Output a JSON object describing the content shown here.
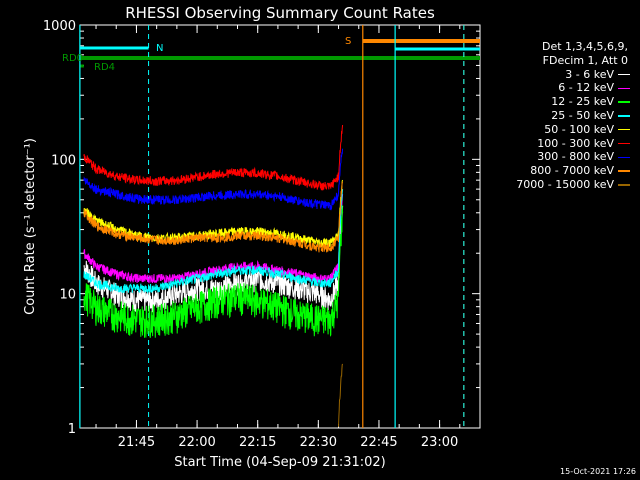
{
  "chart_data": {
    "type": "line",
    "title": "RHESSI Observing Summary Count Rates",
    "xlabel": "Start Time (04-Sep-09 21:31:02)",
    "ylabel": "Count Rate (s⁻¹ detector⁻¹)",
    "y_scale": "log",
    "ylim": [
      1,
      1000
    ],
    "xlim": [
      "21:31:02",
      "23:10:00"
    ],
    "x_ticks": [
      "21:45",
      "22:00",
      "22:15",
      "22:30",
      "22:45",
      "23:00"
    ],
    "y_ticks": [
      "1",
      "10",
      "100",
      "1000"
    ],
    "legend_header": [
      "Det 1,3,4,5,6,9,",
      "FDecim 1, Att 0"
    ],
    "legend_position": "right",
    "series": [
      {
        "name": "3 - 6 keV",
        "color": "#ffffff",
        "x": [
          "21:32",
          "21:35",
          "21:40",
          "21:45",
          "21:50",
          "21:55",
          "22:00",
          "22:05",
          "22:10",
          "22:15",
          "22:20",
          "22:25",
          "22:30",
          "22:33",
          "22:35",
          "22:36"
        ],
        "values": [
          16,
          12,
          10,
          9,
          9,
          10,
          11,
          11,
          12,
          13,
          12,
          11,
          10,
          9,
          12,
          45
        ]
      },
      {
        "name": "6 - 12 keV",
        "color": "#ff00ff",
        "x": [
          "21:32",
          "21:35",
          "21:40",
          "21:45",
          "21:50",
          "21:55",
          "22:00",
          "22:05",
          "22:10",
          "22:15",
          "22:20",
          "22:25",
          "22:30",
          "22:33",
          "22:35",
          "22:36"
        ],
        "values": [
          20,
          16,
          14,
          13,
          13,
          13,
          14,
          15,
          16,
          16,
          15,
          14,
          13,
          13,
          16,
          55
        ]
      },
      {
        "name": "12 - 25 keV",
        "color": "#00ff00",
        "x": [
          "21:32",
          "21:35",
          "21:40",
          "21:45",
          "21:50",
          "21:55",
          "22:00",
          "22:05",
          "22:10",
          "22:15",
          "22:20",
          "22:25",
          "22:30",
          "22:33",
          "22:35",
          "22:36"
        ],
        "values": [
          10,
          8,
          7,
          6.5,
          6.5,
          7,
          8,
          9,
          9.5,
          9,
          8,
          7,
          6.5,
          6.5,
          9,
          40
        ]
      },
      {
        "name": "25 - 50 keV",
        "color": "#00ffff",
        "x": [
          "21:32",
          "21:35",
          "21:40",
          "21:45",
          "21:50",
          "21:55",
          "22:00",
          "22:05",
          "22:10",
          "22:15",
          "22:20",
          "22:25",
          "22:30",
          "22:33",
          "22:35",
          "22:36"
        ],
        "values": [
          14,
          12,
          11,
          11,
          11,
          12,
          13,
          14,
          15,
          15,
          14,
          13,
          12,
          12,
          15,
          60
        ]
      },
      {
        "name": "50 - 100 keV",
        "color": "#ffff00",
        "x": [
          "21:32",
          "21:35",
          "21:40",
          "21:45",
          "21:50",
          "21:55",
          "22:00",
          "22:05",
          "22:10",
          "22:15",
          "22:20",
          "22:25",
          "22:30",
          "22:33",
          "22:35",
          "22:36"
        ],
        "values": [
          42,
          35,
          30,
          27,
          26,
          26,
          27,
          28,
          29,
          29,
          28,
          26,
          24,
          24,
          27,
          70
        ]
      },
      {
        "name": "100 - 300 keV",
        "color": "#ff0000",
        "x": [
          "21:32",
          "21:35",
          "21:40",
          "21:45",
          "21:50",
          "21:55",
          "22:00",
          "22:05",
          "22:10",
          "22:15",
          "22:20",
          "22:25",
          "22:30",
          "22:33",
          "22:35",
          "22:36"
        ],
        "values": [
          105,
          85,
          75,
          70,
          69,
          70,
          74,
          78,
          80,
          79,
          75,
          69,
          64,
          62,
          75,
          180
        ]
      },
      {
        "name": "300 - 800 keV",
        "color": "#0000ff",
        "x": [
          "21:32",
          "21:35",
          "21:40",
          "21:45",
          "21:50",
          "21:55",
          "22:00",
          "22:05",
          "22:10",
          "22:15",
          "22:20",
          "22:25",
          "22:30",
          "22:33",
          "22:35",
          "22:36"
        ],
        "values": [
          70,
          60,
          55,
          51,
          50,
          50,
          52,
          54,
          55,
          55,
          53,
          49,
          46,
          45,
          55,
          120
        ]
      },
      {
        "name": "800 - 7000 keV",
        "color": "#ff8800",
        "x": [
          "21:32",
          "21:35",
          "21:40",
          "21:45",
          "21:50",
          "21:55",
          "22:00",
          "22:05",
          "22:10",
          "22:15",
          "22:20",
          "22:25",
          "22:30",
          "22:33",
          "22:35",
          "22:36"
        ],
        "values": [
          40,
          32,
          28,
          26,
          25,
          25,
          26,
          26,
          27,
          27,
          26,
          24,
          22,
          22,
          26,
          68
        ]
      },
      {
        "name": "7000 - 15000 keV",
        "color": "#996600",
        "x": [
          "22:35",
          "22:36"
        ],
        "values": [
          1,
          3
        ]
      }
    ],
    "annotations": [
      {
        "label": "RD0",
        "color": "#009900"
      },
      {
        "label": "RD4",
        "color": "#009900"
      },
      {
        "label": "N",
        "color": "#00ffff"
      },
      {
        "label": "S",
        "color": "#ff8800"
      }
    ],
    "flags": {
      "N_bar": [
        "21:31:02",
        "21:48"
      ],
      "S_bar": [
        "22:41",
        "23:10"
      ],
      "cyan_bar2": [
        "22:49",
        "23:10"
      ],
      "RD0_bar": [
        "21:31:02",
        "23:10"
      ],
      "RD4_bar": [
        "21:31:02",
        "21:32"
      ],
      "vlines_solid": [
        {
          "t": "21:31",
          "color": "#00ffff"
        },
        {
          "t": "22:41",
          "color": "#ff8800"
        },
        {
          "t": "22:49",
          "color": "#00ffff"
        }
      ],
      "vlines_dashed": [
        {
          "t": "21:48",
          "color": "#00ffff"
        },
        {
          "t": "23:06",
          "color": "#ff8800"
        },
        {
          "t": "23:06",
          "color": "#00ffff"
        }
      ]
    },
    "grid": false
  },
  "footer": "15-Oct-2021 17:26"
}
